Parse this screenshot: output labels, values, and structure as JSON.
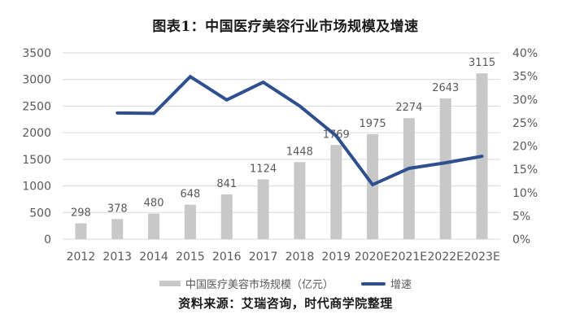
{
  "title": "图表1：中国医疗美容行业市场规模及增速",
  "source": "资料来源：艾瑞咨询，时代商学院整理",
  "legend": {
    "bar_label": "中国医疗美容市场规模（亿元）",
    "line_label": "增速"
  },
  "colors": {
    "bar": "#c8c8c8",
    "line": "#2f4f8f",
    "grid": "#d9d9d9",
    "text": "#595959"
  },
  "chart_data": {
    "type": "bar+line",
    "title": "图表1：中国医疗美容行业市场规模及增速",
    "categories": [
      "2012",
      "2013",
      "2014",
      "2015",
      "2016",
      "2017",
      "2018",
      "2019",
      "2020E",
      "2021E",
      "2022E",
      "2023E"
    ],
    "series": [
      {
        "name": "中国医疗美容市场规模（亿元）",
        "type": "bar",
        "axis": "left",
        "values": [
          298,
          378,
          480,
          648,
          841,
          1124,
          1448,
          1769,
          1975,
          2274,
          2643,
          3115
        ]
      },
      {
        "name": "增速",
        "type": "line",
        "axis": "right",
        "values": [
          null,
          27.1,
          27.0,
          34.9,
          29.9,
          33.7,
          28.6,
          22.2,
          11.7,
          15.2,
          16.4,
          17.8
        ],
        "unit": "%"
      }
    ],
    "left_axis": {
      "min": 0,
      "max": 3500,
      "step": 500,
      "ticks": [
        "0",
        "500",
        "1000",
        "1500",
        "2000",
        "2500",
        "3000",
        "3500"
      ]
    },
    "right_axis": {
      "min": 0,
      "max": 40,
      "step": 5,
      "ticks": [
        "0%",
        "5%",
        "10%",
        "15%",
        "20%",
        "25%",
        "30%",
        "35%",
        "40%"
      ]
    },
    "grid": true,
    "legend_position": "bottom",
    "source": "资料来源：艾瑞咨询，时代商学院整理"
  }
}
